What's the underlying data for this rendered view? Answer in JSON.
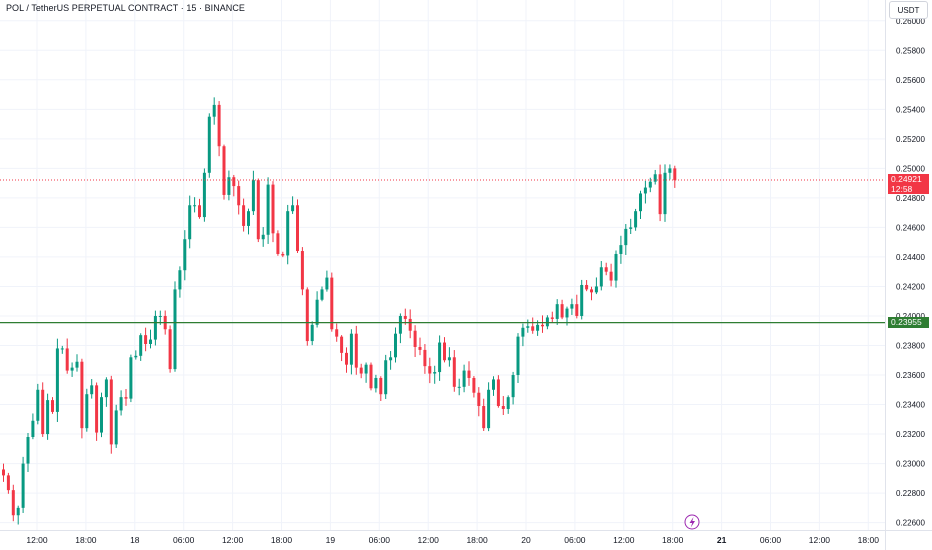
{
  "header": {
    "title": "POL / TetherUS PERPETUAL CONTRACT · 15 · BINANCE"
  },
  "price_axis": {
    "currency": "USDT",
    "ticks": [
      "0.26000",
      "0.25800",
      "0.25600",
      "0.25400",
      "0.25200",
      "0.25000",
      "0.24800",
      "0.24600",
      "0.24400",
      "0.24200",
      "0.24000",
      "0.23800",
      "0.23600",
      "0.23400",
      "0.23200",
      "0.23000",
      "0.22800",
      "0.22600"
    ]
  },
  "time_axis": {
    "ticks": [
      "12:00",
      "18:00",
      "18",
      "06:00",
      "12:00",
      "18:00",
      "19",
      "06:00",
      "12:00",
      "18:00",
      "20",
      "06:00",
      "12:00",
      "18:00",
      "21",
      "06:00",
      "12:00",
      "18:00"
    ],
    "bold": [
      false,
      false,
      false,
      false,
      false,
      false,
      false,
      false,
      false,
      false,
      false,
      false,
      false,
      false,
      true,
      false,
      false,
      false
    ]
  },
  "current_price": {
    "value": "0.24921",
    "countdown": "12:58",
    "color": "#f23645"
  },
  "horizontal_line": {
    "value": "0.23955",
    "color": "#2e7d32"
  },
  "colors": {
    "up": "#089981",
    "down": "#f23645",
    "grid": "#f0f3fa"
  },
  "events": {
    "icon": "lightning-icon",
    "color": "#9c27b0"
  },
  "chart_data": {
    "type": "candlestick",
    "ylim": [
      0.2255,
      0.261
    ],
    "closes": [
      0.2292,
      0.2282,
      0.2265,
      0.227,
      0.23,
      0.2318,
      0.2329,
      0.235,
      0.232,
      0.2343,
      0.2335,
      0.2378,
      0.2378,
      0.2363,
      0.2365,
      0.2369,
      0.2324,
      0.2347,
      0.2353,
      0.2321,
      0.2345,
      0.2357,
      0.2313,
      0.2336,
      0.2345,
      0.2344,
      0.2372,
      0.2373,
      0.2387,
      0.2381,
      0.2384,
      0.24,
      0.24,
      0.2391,
      0.2364,
      0.2418,
      0.2431,
      0.2452,
      0.2475,
      0.2475,
      0.2467,
      0.2497,
      0.2535,
      0.2543,
      0.2515,
      0.2482,
      0.2494,
      0.2488,
      0.2475,
      0.2461,
      0.2471,
      0.2492,
      0.2452,
      0.2455,
      0.2489,
      0.2456,
      0.2442,
      0.2441,
      0.2471,
      0.2475,
      0.2444,
      0.2418,
      0.2383,
      0.2394,
      0.2411,
      0.2418,
      0.2426,
      0.2391,
      0.2386,
      0.2375,
      0.2367,
      0.2388,
      0.2365,
      0.2361,
      0.2367,
      0.2351,
      0.2358,
      0.2347,
      0.237,
      0.2372,
      0.2388,
      0.24,
      0.2398,
      0.239,
      0.2379,
      0.2377,
      0.2366,
      0.2361,
      0.2362,
      0.2382,
      0.237,
      0.2372,
      0.2352,
      0.2352,
      0.2363,
      0.2358,
      0.2348,
      0.2339,
      0.2324,
      0.235,
      0.2357,
      0.2339,
      0.2337,
      0.2345,
      0.236,
      0.2386,
      0.2392,
      0.2393,
      0.239,
      0.2394,
      0.2393,
      0.2399,
      0.2398,
      0.2408,
      0.2399,
      0.2405,
      0.2408,
      0.24,
      0.2421,
      0.2418,
      0.2416,
      0.242,
      0.2433,
      0.243,
      0.2424,
      0.2442,
      0.2448,
      0.2459,
      0.246,
      0.2471,
      0.2483,
      0.2487,
      0.2491,
      0.2496,
      0.2469,
      0.2497,
      0.25,
      0.2492
    ]
  }
}
